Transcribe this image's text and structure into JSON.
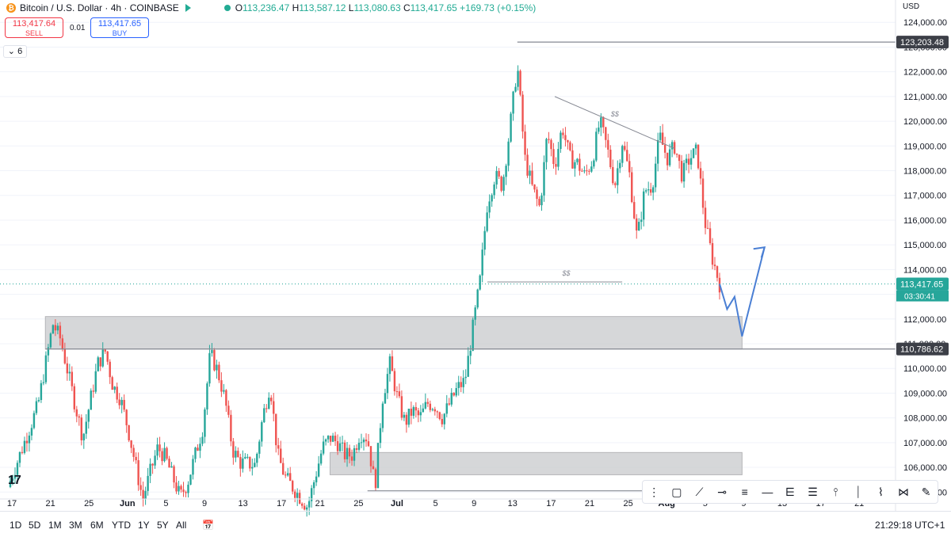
{
  "header": {
    "symbol": "Bitcoin / U.S. Dollar · 4h · COINBASE",
    "open": "113,236.47",
    "high": "113,587.12",
    "low": "113,080.63",
    "close": "113,417.65",
    "change": "+169.73 (+0.15%)"
  },
  "trade": {
    "sell_price": "113,417.64",
    "sell_label": "SELL",
    "buy_price": "113,417.65",
    "buy_label": "BUY",
    "spread": "0.01",
    "indicators_count": "6"
  },
  "currency": "USD",
  "timeframes": [
    "1D",
    "5D",
    "1M",
    "3M",
    "6M",
    "YTD",
    "1Y",
    "5Y",
    "All"
  ],
  "clock": "21:29:18 UTC+1",
  "price_labels": {
    "top_level": "123,203.48",
    "current": "113,417.65",
    "countdown": "03:30:41",
    "zone_level": "110,786.62"
  },
  "annotations": {
    "ss1": "$$",
    "ss2": "$$"
  },
  "icons": [
    "drag-handle-icon",
    "rectangle-icon",
    "trendline-icon",
    "horizontal-ray-icon",
    "parallel-lines-icon",
    "horizontal-line-icon",
    "path-icon",
    "multi-line-icon",
    "fib-icon",
    "vertical-line-icon",
    "polyline-icon",
    "pattern-icon",
    "brush-icon"
  ],
  "chart_data": {
    "type": "candlestick",
    "title": "Bitcoin / U.S. Dollar · 4h · COINBASE",
    "y_ticks": [
      105000,
      106000,
      107000,
      108000,
      109000,
      110000,
      111000,
      112000,
      113000,
      114000,
      115000,
      116000,
      117000,
      118000,
      119000,
      120000,
      121000,
      122000,
      123000,
      124000
    ],
    "ylim": [
      104400,
      124200
    ],
    "x_ticks": [
      "17",
      "21",
      "25",
      "Jun",
      "5",
      "9",
      "13",
      "17",
      "21",
      "25",
      "Jul",
      "5",
      "9",
      "13",
      "17",
      "21",
      "25",
      "Aug",
      "5",
      "9",
      "13",
      "17",
      "21"
    ],
    "path_close": [
      [
        0,
        105200
      ],
      [
        4,
        108500
      ],
      [
        6,
        111800
      ],
      [
        7,
        111200
      ],
      [
        9,
        108500
      ],
      [
        10,
        107200
      ],
      [
        12,
        110200
      ],
      [
        13,
        110700
      ],
      [
        14,
        109300
      ],
      [
        15,
        108800
      ],
      [
        16,
        107600
      ],
      [
        18,
        104700
      ],
      [
        19,
        105800
      ],
      [
        20,
        106800
      ],
      [
        21,
        106400
      ],
      [
        23,
        104800
      ],
      [
        24,
        105400
      ],
      [
        26,
        107600
      ],
      [
        27,
        110600
      ],
      [
        28,
        109900
      ],
      [
        29,
        108700
      ],
      [
        30,
        106700
      ],
      [
        31,
        106200
      ],
      [
        33,
        106100
      ],
      [
        34,
        108000
      ],
      [
        35,
        109400
      ],
      [
        36,
        106500
      ],
      [
        37,
        105600
      ],
      [
        38,
        105200
      ],
      [
        39,
        104800
      ],
      [
        40,
        104400
      ],
      [
        42,
        106800
      ],
      [
        43,
        107200
      ],
      [
        44,
        107000
      ],
      [
        45,
        106500
      ],
      [
        46,
        106500
      ],
      [
        47,
        107400
      ],
      [
        48,
        107200
      ],
      [
        49,
        105200
      ],
      [
        50,
        108800
      ],
      [
        51,
        110200
      ],
      [
        52,
        108800
      ],
      [
        53,
        107800
      ],
      [
        54,
        108300
      ],
      [
        55,
        108000
      ],
      [
        56,
        108600
      ],
      [
        57,
        108500
      ],
      [
        58,
        108000
      ],
      [
        59,
        108600
      ],
      [
        60,
        109200
      ],
      [
        61,
        109500
      ],
      [
        62,
        111500
      ],
      [
        63,
        113500
      ],
      [
        64,
        116700
      ],
      [
        65,
        117800
      ],
      [
        66,
        117400
      ],
      [
        67,
        119700
      ],
      [
        68,
        122300
      ],
      [
        69,
        118500
      ],
      [
        70,
        117300
      ],
      [
        71,
        116500
      ],
      [
        72,
        119500
      ],
      [
        73,
        118200
      ],
      [
        74,
        119800
      ],
      [
        75,
        118500
      ],
      [
        76,
        118300
      ],
      [
        77,
        117800
      ],
      [
        78,
        118400
      ],
      [
        79,
        120000
      ],
      [
        80,
        118900
      ],
      [
        81,
        117400
      ],
      [
        82,
        119200
      ],
      [
        83,
        117800
      ],
      [
        84,
        115200
      ],
      [
        85,
        117200
      ],
      [
        86,
        117400
      ],
      [
        87,
        119400
      ],
      [
        88,
        118500
      ],
      [
        89,
        119000
      ],
      [
        90,
        117800
      ],
      [
        91,
        118500
      ],
      [
        92,
        118800
      ],
      [
        93,
        116000
      ],
      [
        94,
        114500
      ],
      [
        95,
        113418
      ]
    ],
    "slots": 95,
    "zones": [
      {
        "from_slot": 5,
        "to_slot": 98,
        "low": 110786,
        "high": 112100
      },
      {
        "from_slot": 43,
        "to_slot": 98,
        "low": 105700,
        "high": 106600
      }
    ],
    "levels": [
      {
        "from_slot": 68,
        "value": 123203.48
      },
      {
        "from_slot": 5,
        "value": 110786.62
      },
      {
        "from_slot": 48,
        "value": 105050
      }
    ],
    "resistance_line": [
      [
        73,
        121000
      ],
      [
        89,
        118900
      ]
    ],
    "liquidity_line": [
      [
        64,
        113500
      ],
      [
        82,
        113500
      ]
    ],
    "projection": [
      [
        95,
        113418
      ],
      [
        96,
        112400
      ],
      [
        97,
        112900
      ],
      [
        98,
        111300
      ],
      [
        101,
        114900
      ]
    ],
    "current_price": 113417.65
  }
}
